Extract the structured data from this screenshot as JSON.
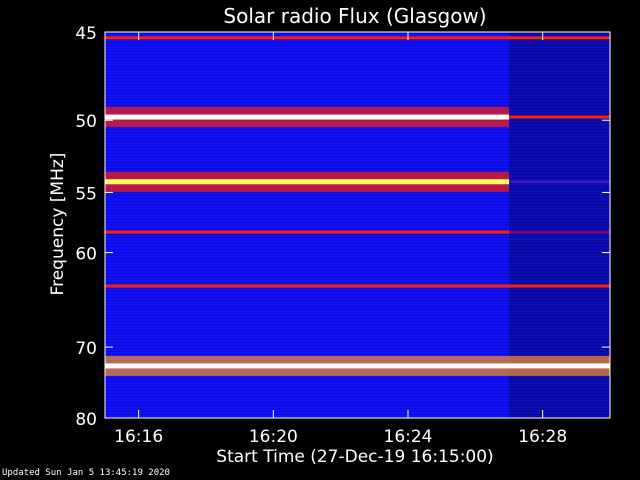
{
  "chart_data": {
    "type": "heatmap",
    "title": "Solar radio Flux (Glasgow)",
    "xlabel": "Start Time (27-Dec-19 16:15:00)",
    "ylabel": "Frequency [MHz]",
    "x_start": "16:15:00",
    "x_end": "16:30:00",
    "xlim_minutes": [
      0,
      15
    ],
    "ylim": [
      45,
      80
    ],
    "y_inverted": true,
    "xticks": [
      "16:16",
      "16:20",
      "16:24",
      "16:28"
    ],
    "yticks": [
      45,
      50,
      55,
      60,
      70,
      80
    ],
    "colormap": [
      "#1010ff",
      "#3a18c8",
      "#7a0a70",
      "#b80000",
      "#ff2000",
      "#ff9020",
      "#ffff60",
      "#ffffff"
    ],
    "signal_change_time": "16:27:00",
    "bands": [
      {
        "freq_mhz": 45.3,
        "level_before": 0.55,
        "level_after": 0.55
      },
      {
        "freq_mhz": 49.8,
        "level_before": 0.95,
        "level_after": 0.55
      },
      {
        "freq_mhz": 54.2,
        "level_before": 0.85,
        "level_after": 0.2
      },
      {
        "freq_mhz": 58.2,
        "level_before": 0.6,
        "level_after": 0.3
      },
      {
        "freq_mhz": 63.2,
        "level_before": 0.55,
        "level_after": 0.6
      },
      {
        "freq_mhz": 72.4,
        "level_before": 1.0,
        "level_after": 1.0
      }
    ],
    "footnote": "Updated Sun Jan  5 13:45:19 2020"
  }
}
